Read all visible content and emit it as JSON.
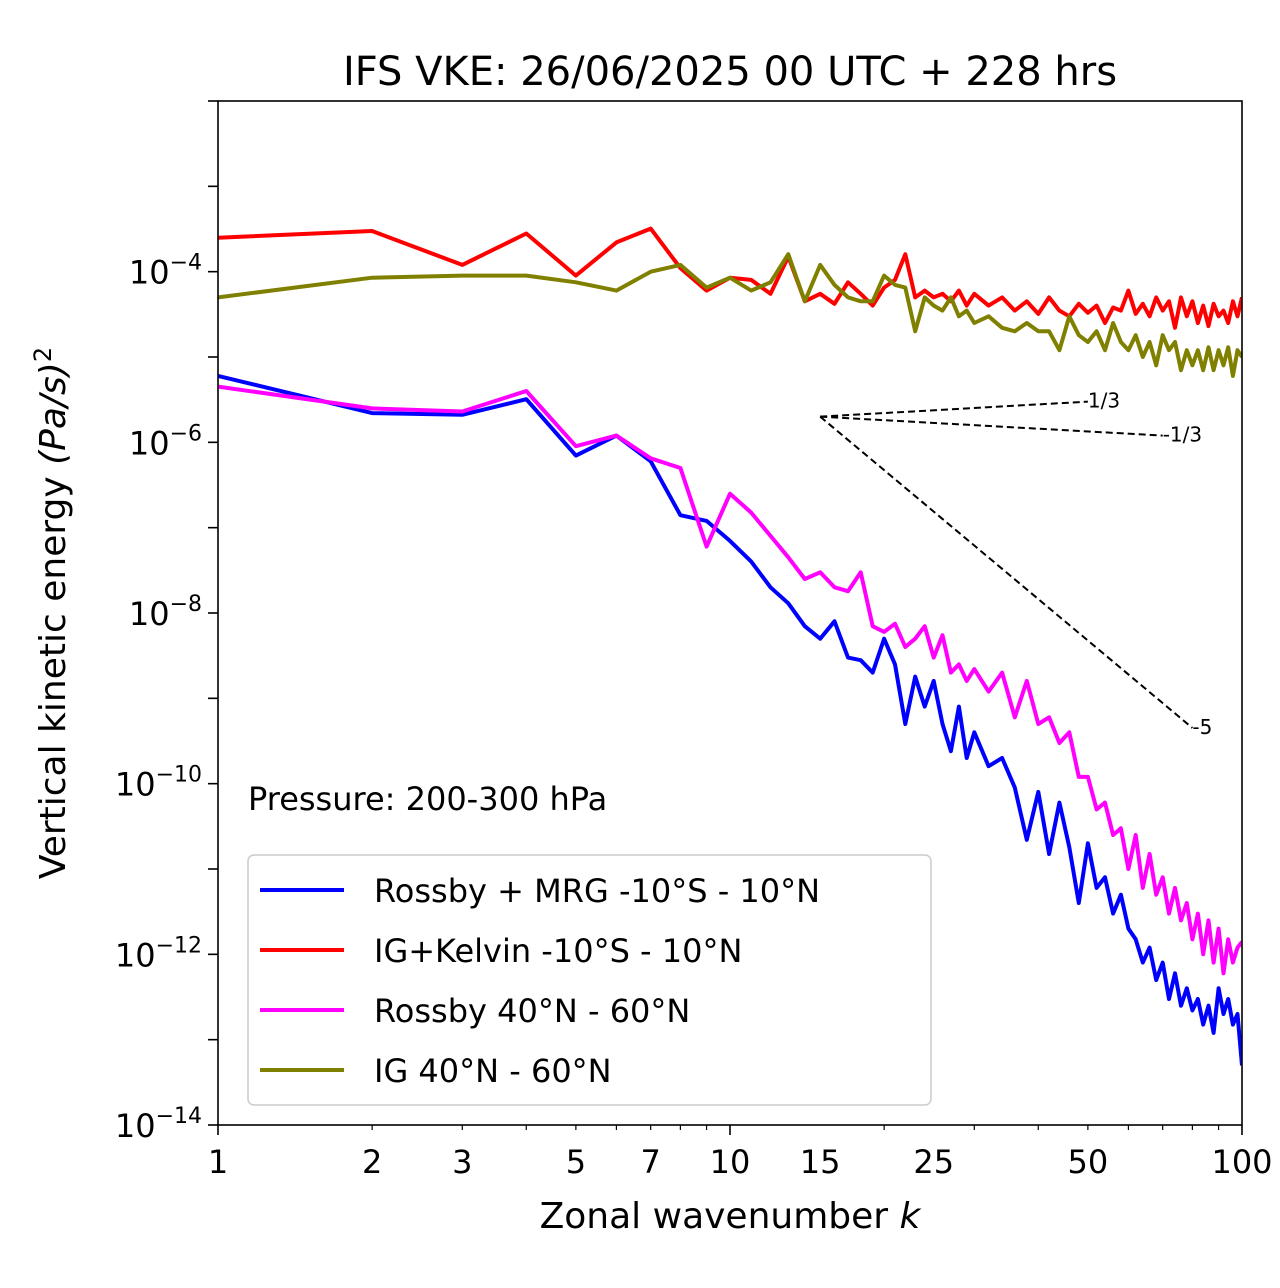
{
  "chart_data": {
    "type": "line",
    "title": "IFS VKE: 26/06/2025 00 UTC + 228 hrs",
    "xlabel": "Zonal wavenumber",
    "xlabel_var": "k",
    "ylabel": "Vertical kinetic energy",
    "ylabel_unit": "(Pa/s)",
    "ylabel_exp": "2",
    "xscale": "log",
    "yscale": "log",
    "xlim": [
      1,
      100
    ],
    "ylim": [
      1e-14,
      0.01
    ],
    "xticks": [
      1,
      2,
      3,
      5,
      7,
      10,
      15,
      25,
      50,
      100
    ],
    "yticks": [
      {
        "value": 1e-14,
        "base": "10",
        "exp": "−14"
      },
      {
        "value": 1e-12,
        "base": "10",
        "exp": "−12"
      },
      {
        "value": 1e-10,
        "base": "10",
        "exp": "−10"
      },
      {
        "value": 1e-08,
        "base": "10",
        "exp": "−8"
      },
      {
        "value": 1e-06,
        "base": "10",
        "exp": "−6"
      },
      {
        "value": 0.0001,
        "base": "10",
        "exp": "−4"
      }
    ],
    "annotation": "Pressure: 200-300 hPa",
    "legend_position": "lower-left",
    "grid": false,
    "slope_lines": [
      {
        "label": "1/3",
        "from": [
          15,
          2e-06
        ],
        "to": [
          50,
          3e-06
        ]
      },
      {
        "label": "-1/3",
        "from": [
          15,
          2e-06
        ],
        "to": [
          70,
          1.2e-06
        ]
      },
      {
        "label": "-5",
        "from": [
          15,
          2e-06
        ],
        "to": [
          80,
          4.5e-10
        ]
      }
    ],
    "series": [
      {
        "name": "Rossby + MRG -10°S - 10°N",
        "color": "#0000ff",
        "x": [
          1,
          2,
          3,
          4,
          5,
          6,
          7,
          8,
          9,
          10,
          11,
          12,
          13,
          14,
          15,
          16,
          17,
          18,
          19,
          20,
          21,
          22,
          23,
          24,
          25,
          26,
          27,
          28,
          29,
          30,
          32,
          34,
          36,
          38,
          40,
          42,
          44,
          46,
          48,
          50,
          52,
          54,
          56,
          58,
          60,
          62,
          64,
          66,
          68,
          70,
          72,
          74,
          76,
          78,
          80,
          82,
          84,
          86,
          88,
          90,
          92,
          94,
          96,
          98,
          100
        ],
        "y": [
          6e-06,
          2.2e-06,
          2.1e-06,
          3.2e-06,
          7e-07,
          1.2e-06,
          6e-07,
          1.4e-07,
          1.2e-07,
          7e-08,
          4e-08,
          2e-08,
          1.3e-08,
          7e-09,
          5e-09,
          8e-09,
          3e-09,
          2.8e-09,
          2e-09,
          5e-09,
          2.5e-09,
          5e-10,
          1.8e-09,
          8e-10,
          1.6e-09,
          5e-10,
          2.4e-10,
          8e-10,
          2e-10,
          4e-10,
          1.6e-10,
          2e-10,
          9e-11,
          2.2e-11,
          8e-11,
          1.5e-11,
          6e-11,
          1.8e-11,
          4e-12,
          2e-11,
          6e-12,
          8e-12,
          3e-12,
          5e-12,
          2e-12,
          1.5e-12,
          8e-13,
          1.2e-12,
          5e-13,
          8e-13,
          3e-13,
          6e-13,
          2.5e-13,
          4e-13,
          2.2e-13,
          3e-13,
          1.5e-13,
          2.5e-13,
          1.2e-13,
          4e-13,
          2e-13,
          3e-13,
          1.5e-13,
          2e-13,
          5e-14
        ]
      },
      {
        "name": "IG+Kelvin -10°S - 10°N",
        "color": "#ff0000",
        "x": [
          1,
          2,
          3,
          4,
          5,
          6,
          7,
          8,
          9,
          10,
          11,
          12,
          13,
          14,
          15,
          16,
          17,
          18,
          19,
          20,
          21,
          22,
          23,
          24,
          25,
          26,
          27,
          28,
          29,
          30,
          32,
          34,
          36,
          38,
          40,
          42,
          44,
          46,
          48,
          50,
          52,
          54,
          56,
          58,
          60,
          62,
          64,
          66,
          68,
          70,
          72,
          74,
          76,
          78,
          80,
          82,
          84,
          86,
          88,
          90,
          92,
          94,
          96,
          98,
          100
        ],
        "y": [
          0.00025,
          0.0003,
          0.00012,
          0.00028,
          9e-05,
          0.00022,
          0.00032,
          0.00011,
          6e-05,
          8.5e-05,
          8e-05,
          5.5e-05,
          0.00015,
          4.5e-05,
          5.5e-05,
          4.2e-05,
          7.5e-05,
          5.5e-05,
          4e-05,
          6.5e-05,
          8e-05,
          0.00016,
          5e-05,
          6e-05,
          5e-05,
          5.5e-05,
          4.5e-05,
          6e-05,
          4e-05,
          5.5e-05,
          4e-05,
          5e-05,
          3.5e-05,
          4.5e-05,
          3.2e-05,
          5e-05,
          3.5e-05,
          3e-05,
          4.2e-05,
          3.3e-05,
          4e-05,
          2.5e-05,
          3.8e-05,
          3.5e-05,
          6e-05,
          3.2e-05,
          4.2e-05,
          3e-05,
          5e-05,
          3.5e-05,
          4.5e-05,
          2.2e-05,
          5e-05,
          3e-05,
          4.5e-05,
          2.5e-05,
          4e-05,
          2.3e-05,
          4.2e-05,
          3e-05,
          3.5e-05,
          2.5e-05,
          4.5e-05,
          3e-05,
          5e-05
        ]
      },
      {
        "name": "Rossby 40°N - 60°N",
        "color": "#ff00ff",
        "x": [
          1,
          2,
          3,
          4,
          5,
          6,
          7,
          8,
          9,
          10,
          11,
          12,
          13,
          14,
          15,
          16,
          17,
          18,
          19,
          20,
          21,
          22,
          23,
          24,
          25,
          26,
          27,
          28,
          29,
          30,
          32,
          34,
          36,
          38,
          40,
          42,
          44,
          46,
          48,
          50,
          52,
          54,
          56,
          58,
          60,
          62,
          64,
          66,
          68,
          70,
          72,
          74,
          76,
          78,
          80,
          82,
          84,
          86,
          88,
          90,
          92,
          94,
          96,
          98,
          100
        ],
        "y": [
          4.5e-06,
          2.5e-06,
          2.3e-06,
          4e-06,
          9e-07,
          1.2e-06,
          6.5e-07,
          5e-07,
          6e-08,
          2.5e-07,
          1.5e-07,
          8e-08,
          4.5e-08,
          2.5e-08,
          3e-08,
          2e-08,
          1.8e-08,
          3e-08,
          7e-09,
          6e-09,
          7.5e-09,
          4e-09,
          5e-09,
          7e-09,
          3e-09,
          5.5e-09,
          2e-09,
          2.5e-09,
          1.6e-09,
          2.2e-09,
          1.2e-09,
          2e-09,
          6e-10,
          1.6e-09,
          5e-10,
          6e-10,
          3e-10,
          4e-10,
          1.2e-10,
          1.2e-10,
          5e-11,
          6e-11,
          2.5e-11,
          3e-11,
          1e-11,
          2.5e-11,
          6e-12,
          1.5e-11,
          5e-12,
          8e-12,
          3e-12,
          6e-12,
          2.5e-12,
          4e-12,
          1.5e-12,
          3e-12,
          1e-12,
          2.5e-12,
          8e-13,
          2e-12,
          6e-13,
          1.5e-12,
          8e-13,
          1.2e-12,
          1.4e-12
        ]
      },
      {
        "name": "IG 40°N - 60°N",
        "color": "#808000",
        "x": [
          1,
          2,
          3,
          4,
          5,
          6,
          7,
          8,
          9,
          10,
          11,
          12,
          13,
          14,
          15,
          16,
          17,
          18,
          19,
          20,
          21,
          22,
          23,
          24,
          25,
          26,
          27,
          28,
          29,
          30,
          32,
          34,
          36,
          38,
          40,
          42,
          44,
          46,
          48,
          50,
          52,
          54,
          56,
          58,
          60,
          62,
          64,
          66,
          68,
          70,
          72,
          74,
          76,
          78,
          80,
          82,
          84,
          86,
          88,
          90,
          92,
          94,
          96,
          98,
          100
        ],
        "y": [
          5e-05,
          8.5e-05,
          9e-05,
          9e-05,
          7.5e-05,
          6e-05,
          0.0001,
          0.00012,
          6.5e-05,
          8.5e-05,
          6e-05,
          7.5e-05,
          0.00016,
          4.5e-05,
          0.00012,
          7e-05,
          5e-05,
          4.5e-05,
          4.5e-05,
          9e-05,
          7e-05,
          6.5e-05,
          2e-05,
          5e-05,
          4e-05,
          3.5e-05,
          5e-05,
          3e-05,
          3.5e-05,
          2.5e-05,
          3e-05,
          2.2e-05,
          2e-05,
          2.5e-05,
          2e-05,
          2e-05,
          1.2e-05,
          3e-05,
          1.8e-05,
          1.5e-05,
          2e-05,
          1.2e-05,
          2.5e-05,
          1.5e-05,
          1.2e-05,
          1.8e-05,
          1e-05,
          1.5e-05,
          8e-06,
          1.8e-05,
          1.2e-05,
          1.5e-05,
          7e-06,
          1.2e-05,
          8e-06,
          1.2e-05,
          7e-06,
          1.3e-05,
          7e-06,
          1.2e-05,
          8e-06,
          1.3e-05,
          6e-06,
          1.2e-05,
          1e-05
        ]
      }
    ]
  }
}
